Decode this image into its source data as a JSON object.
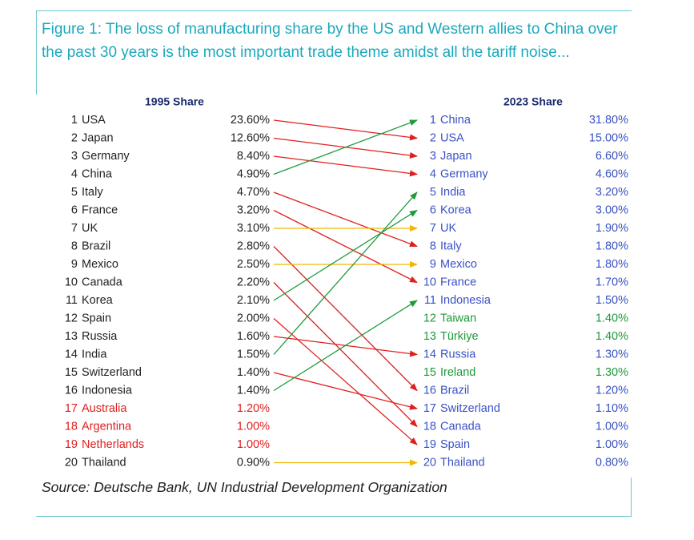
{
  "figure": {
    "title": "Figure 1: The loss of manufacturing share by the US and Western allies to China over the past 30 years is the most important trade theme amidst all the tariff noise...",
    "source": "Source: Deutsche Bank, UN Industrial Development Organization"
  },
  "colors": {
    "title": "#1ba9bd",
    "left_text": "#222222",
    "left_text_highlight": "#e01e1e",
    "right_text": "#3a52c4",
    "right_text_new": "#1e9a3a",
    "arrow_red": "#e01e1e",
    "arrow_green": "#1e9a3a",
    "arrow_yellow": "#f2b800"
  },
  "chart_data": {
    "type": "table",
    "left_header": "1995 Share",
    "right_header": "2023 Share",
    "left": [
      {
        "rank": "1",
        "country": "USA",
        "share": "23.60%",
        "to": 2,
        "arrow": "red"
      },
      {
        "rank": "2",
        "country": "Japan",
        "share": "12.60%",
        "to": 3,
        "arrow": "red"
      },
      {
        "rank": "3",
        "country": "Germany",
        "share": "8.40%",
        "to": 4,
        "arrow": "red"
      },
      {
        "rank": "4",
        "country": "China",
        "share": "4.90%",
        "to": 1,
        "arrow": "green"
      },
      {
        "rank": "5",
        "country": "Italy",
        "share": "4.70%",
        "to": 8,
        "arrow": "red"
      },
      {
        "rank": "6",
        "country": "France",
        "share": "3.20%",
        "to": 10,
        "arrow": "red"
      },
      {
        "rank": "7",
        "country": "UK",
        "share": "3.10%",
        "to": 7,
        "arrow": "yellow"
      },
      {
        "rank": "8",
        "country": "Brazil",
        "share": "2.80%",
        "to": 16,
        "arrow": "red"
      },
      {
        "rank": "9",
        "country": "Mexico",
        "share": "2.50%",
        "to": 9,
        "arrow": "yellow"
      },
      {
        "rank": "10",
        "country": "Canada",
        "share": "2.20%",
        "to": 18,
        "arrow": "red"
      },
      {
        "rank": "11",
        "country": "Korea",
        "share": "2.10%",
        "to": 6,
        "arrow": "green"
      },
      {
        "rank": "12",
        "country": "Spain",
        "share": "2.00%",
        "to": 19,
        "arrow": "red"
      },
      {
        "rank": "13",
        "country": "Russia",
        "share": "1.60%",
        "to": 14,
        "arrow": "red"
      },
      {
        "rank": "14",
        "country": "India",
        "share": "1.50%",
        "to": 5,
        "arrow": "green"
      },
      {
        "rank": "15",
        "country": "Switzerland",
        "share": "1.40%",
        "to": 17,
        "arrow": "red"
      },
      {
        "rank": "16",
        "country": "Indonesia",
        "share": "1.40%",
        "to": 11,
        "arrow": "green"
      },
      {
        "rank": "17",
        "country": "Australia",
        "share": "1.20%",
        "highlight": true
      },
      {
        "rank": "18",
        "country": "Argentina",
        "share": "1.00%",
        "highlight": true
      },
      {
        "rank": "19",
        "country": "Netherlands",
        "share": "1.00%",
        "highlight": true
      },
      {
        "rank": "20",
        "country": "Thailand",
        "share": "0.90%",
        "to": 20,
        "arrow": "yellow"
      }
    ],
    "right": [
      {
        "rank": "1",
        "country": "China",
        "share": "31.80%"
      },
      {
        "rank": "2",
        "country": "USA",
        "share": "15.00%"
      },
      {
        "rank": "3",
        "country": "Japan",
        "share": "6.60%"
      },
      {
        "rank": "4",
        "country": "Germany",
        "share": "4.60%"
      },
      {
        "rank": "5",
        "country": "India",
        "share": "3.20%"
      },
      {
        "rank": "6",
        "country": "Korea",
        "share": "3.00%"
      },
      {
        "rank": "7",
        "country": "UK",
        "share": "1.90%"
      },
      {
        "rank": "8",
        "country": "Italy",
        "share": "1.80%"
      },
      {
        "rank": "9",
        "country": "Mexico",
        "share": "1.80%"
      },
      {
        "rank": "10",
        "country": "France",
        "share": "1.70%"
      },
      {
        "rank": "11",
        "country": "Indonesia",
        "share": "1.50%"
      },
      {
        "rank": "12",
        "country": "Taiwan",
        "share": "1.40%",
        "new": true
      },
      {
        "rank": "13",
        "country": "Türkiye",
        "share": "1.40%",
        "new": true
      },
      {
        "rank": "14",
        "country": "Russia",
        "share": "1.30%"
      },
      {
        "rank": "15",
        "country": "Ireland",
        "share": "1.30%",
        "new": true
      },
      {
        "rank": "16",
        "country": "Brazil",
        "share": "1.20%"
      },
      {
        "rank": "17",
        "country": "Switzerland",
        "share": "1.10%"
      },
      {
        "rank": "18",
        "country": "Canada",
        "share": "1.00%"
      },
      {
        "rank": "19",
        "country": "Spain",
        "share": "1.00%"
      },
      {
        "rank": "20",
        "country": "Thailand",
        "share": "0.80%"
      }
    ]
  }
}
